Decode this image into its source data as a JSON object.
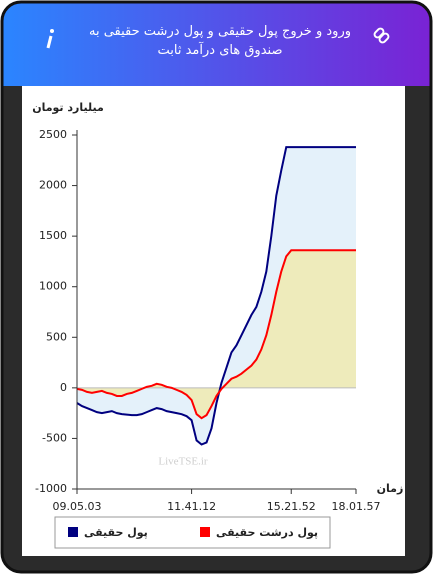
{
  "chart_data": {
    "type": "area_line",
    "title": "ورود و خروج پول حقیقی و پول درشت حقیقی به صندوق های درآمد ثابت",
    "y_label": "میلیارد تومان",
    "x_label": "زمان",
    "watermark": "LiveTSE.ir",
    "categories": [
      "09.05.03",
      null,
      null,
      null,
      null,
      null,
      null,
      null,
      null,
      null,
      null,
      null,
      null,
      null,
      null,
      null,
      null,
      null,
      null,
      null,
      null,
      null,
      null,
      "11.41.12",
      null,
      null,
      null,
      null,
      null,
      null,
      null,
      null,
      null,
      null,
      null,
      null,
      null,
      null,
      null,
      null,
      null,
      null,
      null,
      "15.21.52",
      null,
      null,
      null,
      null,
      null,
      null,
      null,
      null,
      null,
      null,
      null,
      null,
      "18.01.57"
    ],
    "series": [
      {
        "name": "پول حقیقی",
        "color": "#000080",
        "fill": "#e4f1fa",
        "values": [
          -150,
          -180,
          -200,
          -220,
          -240,
          -250,
          -240,
          -230,
          -250,
          -260,
          -265,
          -270,
          -270,
          -260,
          -240,
          -220,
          -200,
          -210,
          -230,
          -240,
          -250,
          -260,
          -280,
          -320,
          -520,
          -560,
          -540,
          -400,
          -150,
          50,
          200,
          350,
          420,
          520,
          620,
          720,
          800,
          950,
          1150,
          1500,
          1900,
          2150,
          2380,
          2380,
          2380,
          2380,
          2380,
          2380,
          2380,
          2380,
          2380,
          2380,
          2380,
          2380,
          2380,
          2380,
          2380
        ]
      },
      {
        "name": "پول درشت حقیقی",
        "color": "#ff0000",
        "fill": "#eeebbb",
        "values": [
          -10,
          -20,
          -40,
          -50,
          -40,
          -30,
          -50,
          -60,
          -80,
          -80,
          -60,
          -50,
          -30,
          -10,
          10,
          20,
          40,
          30,
          10,
          0,
          -20,
          -40,
          -70,
          -120,
          -260,
          -300,
          -270,
          -180,
          -80,
          -10,
          40,
          90,
          110,
          140,
          180,
          220,
          280,
          380,
          520,
          720,
          950,
          1150,
          1300,
          1360,
          1360,
          1360,
          1360,
          1360,
          1360,
          1360,
          1360,
          1360,
          1360,
          1360,
          1360,
          1360,
          1360
        ]
      }
    ],
    "ylim": [
      -1000,
      2500
    ],
    "yticks": [
      -1000,
      -500,
      0,
      500,
      1000,
      1500,
      2000,
      2500
    ],
    "grid": false
  }
}
